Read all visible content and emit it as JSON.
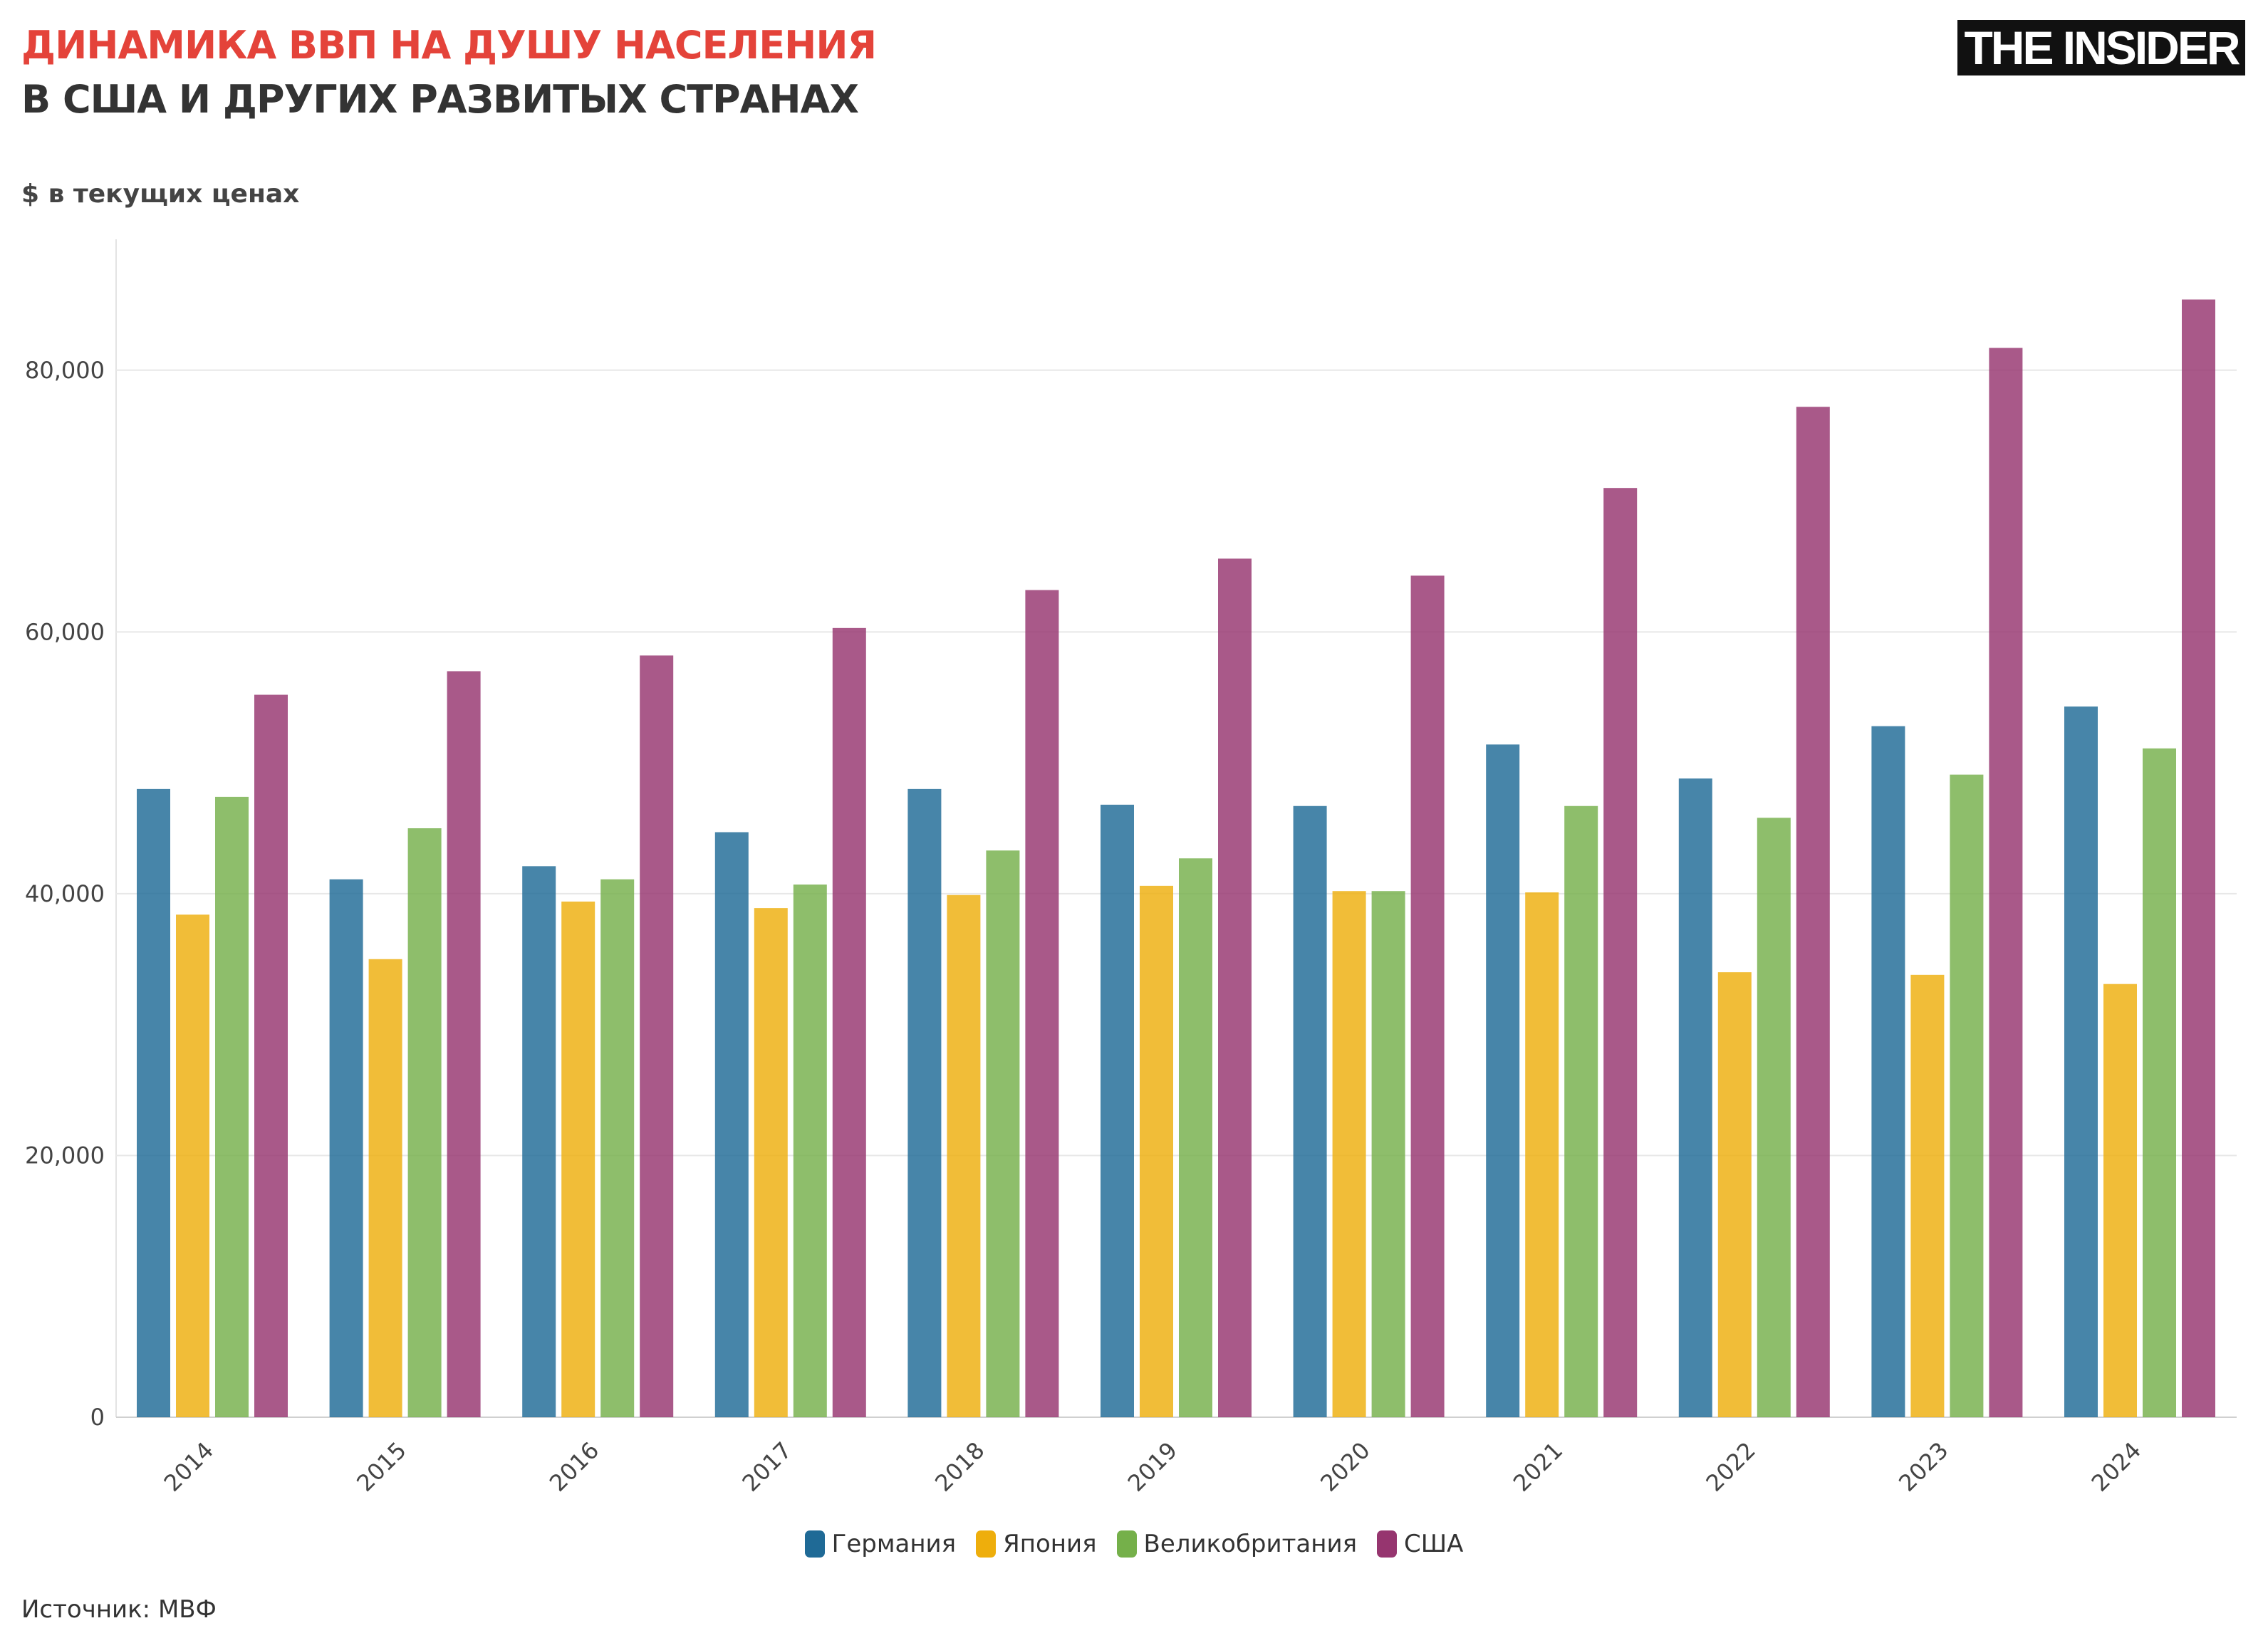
{
  "header": {
    "title": "ДИНАМИКА ВВП НА ДУШУ НАСЕЛЕНИЯ",
    "subtitle": "В США И ДРУГИХ РАЗВИТЫХ СТРАНАХ",
    "unit_label": "$ в текущих ценах",
    "logo": "THE INSIDER"
  },
  "source": "Источник: МВФ",
  "chart_data": {
    "type": "bar",
    "title": "ДИНАМИКА ВВП НА ДУШУ НАСЕЛЕНИЯ",
    "subtitle": "В США И ДРУГИХ РАЗВИТЫХ СТРАНАХ",
    "ylabel": "$ в текущих ценах",
    "xlabel": "",
    "categories": [
      "2014",
      "2015",
      "2016",
      "2017",
      "2018",
      "2019",
      "2020",
      "2021",
      "2022",
      "2023",
      "2024"
    ],
    "ylim": [
      0,
      90000
    ],
    "yticks": [
      0,
      20000,
      40000,
      60000,
      80000
    ],
    "ytick_labels": [
      "0",
      "20,000",
      "40,000",
      "60,000",
      "80,000"
    ],
    "grid": true,
    "legend_position": "bottom",
    "series": [
      {
        "name": "Германия",
        "color": "#1f6a96",
        "values": [
          48000,
          41100,
          42100,
          44700,
          48000,
          46800,
          46700,
          51400,
          48800,
          52800,
          54300
        ]
      },
      {
        "name": "Япония",
        "color": "#eeae0c",
        "values": [
          38400,
          35000,
          39400,
          38900,
          39900,
          40600,
          40200,
          40100,
          34000,
          33800,
          33100
        ]
      },
      {
        "name": "Великобритания",
        "color": "#75b04a",
        "values": [
          47400,
          45000,
          41100,
          40700,
          43300,
          42700,
          40200,
          46700,
          45800,
          49100,
          51100
        ]
      },
      {
        "name": "США",
        "color": "#96356f",
        "values": [
          55200,
          57000,
          58200,
          60300,
          63200,
          65600,
          64300,
          71000,
          77200,
          81700,
          85400
        ]
      }
    ]
  }
}
